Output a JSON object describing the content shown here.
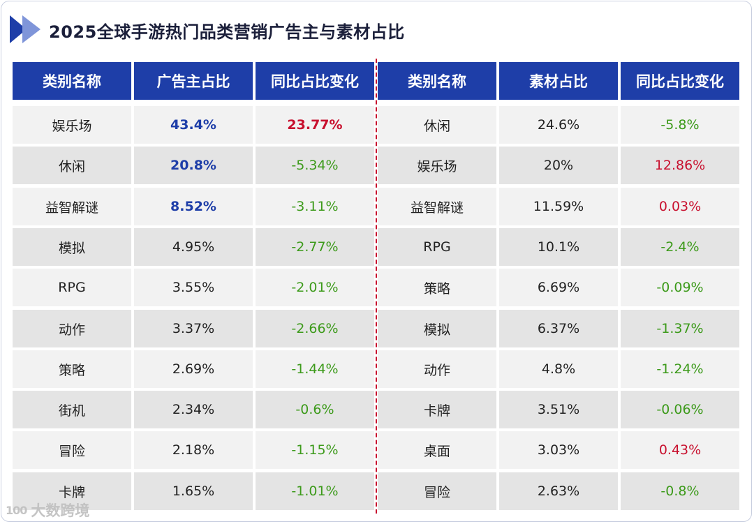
{
  "title": "2025全球手游热门品类营销广告主与素材占比",
  "left_headers": [
    "类别名称",
    "广告主占比",
    "同比占比变化"
  ],
  "right_headers": [
    "类别名称",
    "素材占比",
    "同比占比变化"
  ],
  "left_rows": [
    {
      "category": "娱乐场",
      "share": "43.4%",
      "change": "23.77%"
    },
    {
      "category": "休闲",
      "share": "20.8%",
      "change": "-5.34%"
    },
    {
      "category": "益智解谜",
      "share": "8.52%",
      "change": "-3.11%"
    },
    {
      "category": "模拟",
      "share": "4.95%",
      "change": "-2.77%"
    },
    {
      "category": "RPG",
      "share": "3.55%",
      "change": "-2.01%"
    },
    {
      "category": "动作",
      "share": "3.37%",
      "change": "-2.66%"
    },
    {
      "category": "策略",
      "share": "2.69%",
      "change": "-1.44%"
    },
    {
      "category": "街机",
      "share": "2.34%",
      "change": "-0.6%"
    },
    {
      "category": "冒险",
      "share": "2.18%",
      "change": "-1.15%"
    },
    {
      "category": "卡牌",
      "share": "1.65%",
      "change": "-1.01%"
    }
  ],
  "right_rows": [
    {
      "category": "休闲",
      "share": "24.6%",
      "change": "-5.8%"
    },
    {
      "category": "娱乐场",
      "share": "20%",
      "change": "12.86%"
    },
    {
      "category": "益智解谜",
      "share": "11.59%",
      "change": "0.03%"
    },
    {
      "category": "RPG",
      "share": "10.1%",
      "change": "-2.4%"
    },
    {
      "category": "策略",
      "share": "6.69%",
      "change": "-0.09%"
    },
    {
      "category": "模拟",
      "share": "6.37%",
      "change": "-1.37%"
    },
    {
      "category": "动作",
      "share": "4.8%",
      "change": "-1.24%"
    },
    {
      "category": "卡牌",
      "share": "3.51%",
      "change": "-0.06%"
    },
    {
      "category": "桌面",
      "share": "3.03%",
      "change": "0.43%"
    },
    {
      "category": "冒险",
      "share": "2.63%",
      "change": "-0.8%"
    }
  ],
  "watermark": {
    "logo": "100",
    "text": "大数跨境"
  },
  "colors": {
    "header_bg": "#1e3ea8",
    "positive": "#c8102e",
    "negative": "#3c9a1a",
    "highlight": "#1e3ea8"
  }
}
